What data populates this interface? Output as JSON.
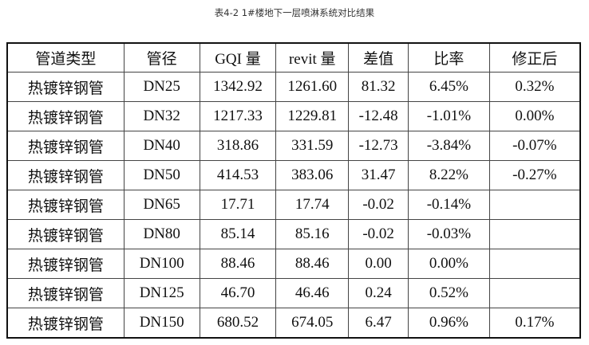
{
  "title": "表4-2 1#楼地下一层喷淋系统对比结果",
  "table": {
    "headers": [
      "管道类型",
      "管径",
      "GQI 量",
      "revit 量",
      "差值",
      "比率",
      "修正后"
    ],
    "rows": [
      [
        "热镀锌钢管",
        "DN25",
        "1342.92",
        "1261.60",
        "81.32",
        "6.45%",
        "0.32%"
      ],
      [
        "热镀锌钢管",
        "DN32",
        "1217.33",
        "1229.81",
        "-12.48",
        "-1.01%",
        "0.00%"
      ],
      [
        "热镀锌钢管",
        "DN40",
        "318.86",
        "331.59",
        "-12.73",
        "-3.84%",
        "-0.07%"
      ],
      [
        "热镀锌钢管",
        "DN50",
        "414.53",
        "383.06",
        "31.47",
        "8.22%",
        "-0.27%"
      ],
      [
        "热镀锌钢管",
        "DN65",
        "17.71",
        "17.74",
        "-0.02",
        "-0.14%",
        ""
      ],
      [
        "热镀锌钢管",
        "DN80",
        "85.14",
        "85.16",
        "-0.02",
        "-0.03%",
        ""
      ],
      [
        "热镀锌钢管",
        "DN100",
        "88.46",
        "88.46",
        "0.00",
        "0.00%",
        ""
      ],
      [
        "热镀锌钢管",
        "DN125",
        "46.70",
        "46.46",
        "0.24",
        "0.52%",
        ""
      ],
      [
        "热镀锌钢管",
        "DN150",
        "680.52",
        "674.05",
        "6.47",
        "0.96%",
        "0.17%"
      ]
    ]
  }
}
